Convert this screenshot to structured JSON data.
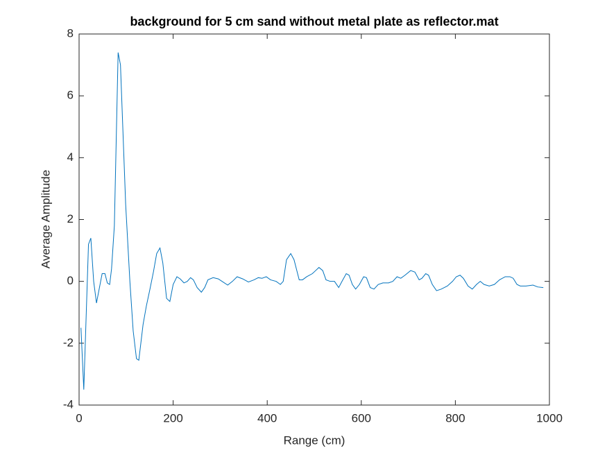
{
  "chart_data": {
    "type": "line",
    "title": "background for 5 cm sand without metal plate as reflector.mat",
    "x_label": "Range (cm)",
    "y_label": "Average Amplitude",
    "xlim": [
      0,
      1000
    ],
    "xticks": [
      0,
      200,
      400,
      600,
      800,
      1000
    ],
    "ylim": [
      -4,
      8
    ],
    "yticks": [
      -4,
      -2,
      0,
      2,
      4,
      6,
      8
    ],
    "grid": false,
    "series": [
      {
        "color": "#0072bd",
        "x": [
          4,
          10,
          20,
          25,
          31,
          37,
          49,
          55,
          60,
          65,
          69,
          75,
          83,
          88,
          99,
          108,
          115,
          122,
          127,
          136,
          143,
          150,
          158,
          165,
          172,
          178,
          186,
          193,
          200,
          208,
          215,
          223,
          230,
          237,
          243,
          251,
          260,
          267,
          274,
          285,
          296,
          304,
          316,
          326,
          336,
          348,
          360,
          372,
          381,
          389,
          398,
          407,
          419,
          428,
          434,
          441,
          450,
          457,
          468,
          475,
          484,
          496,
          503,
          510,
          518,
          525,
          534,
          543,
          552,
          559,
          568,
          574,
          581,
          588,
          596,
          605,
          611,
          619,
          627,
          636,
          646,
          658,
          667,
          676,
          684,
          693,
          705,
          714,
          723,
          729,
          737,
          743,
          751,
          760,
          770,
          783,
          794,
          802,
          810,
          817,
          827,
          836,
          845,
          853,
          861,
          872,
          883,
          894,
          906,
          916,
          923,
          931,
          938,
          950,
          965,
          975,
          987
        ],
        "values": [
          -1.5,
          -3.5,
          1.2,
          1.4,
          0,
          -0.7,
          0.25,
          0.25,
          -0.05,
          -0.1,
          0.4,
          1.8,
          7.4,
          7.0,
          2.5,
          0,
          -1.6,
          -2.5,
          -2.55,
          -1.4,
          -0.8,
          -0.3,
          0.3,
          0.9,
          1.08,
          0.6,
          -0.55,
          -0.65,
          -0.1,
          0.15,
          0.08,
          -0.05,
          0,
          0.12,
          0.05,
          -0.2,
          -0.35,
          -0.2,
          0.05,
          0.12,
          0.08,
          0,
          -0.12,
          0,
          0.15,
          0.08,
          -0.02,
          0.05,
          0.12,
          0.1,
          0.15,
          0.05,
          0,
          -0.1,
          0,
          0.7,
          0.9,
          0.7,
          0.05,
          0.05,
          0.15,
          0.25,
          0.35,
          0.45,
          0.35,
          0.05,
          0,
          0,
          -0.2,
          0,
          0.25,
          0.2,
          -0.1,
          -0.25,
          -0.1,
          0.15,
          0.12,
          -0.2,
          -0.25,
          -0.1,
          -0.05,
          -0.05,
          0,
          0.15,
          0.1,
          0.2,
          0.35,
          0.3,
          0.05,
          0.1,
          0.25,
          0.2,
          -0.1,
          -0.3,
          -0.25,
          -0.15,
          0,
          0.15,
          0.2,
          0.1,
          -0.15,
          -0.25,
          -0.1,
          0,
          -0.1,
          -0.15,
          -0.1,
          0.05,
          0.15,
          0.15,
          0.1,
          -0.1,
          -0.15,
          -0.15,
          -0.12,
          -0.18,
          -0.2
        ]
      }
    ]
  }
}
